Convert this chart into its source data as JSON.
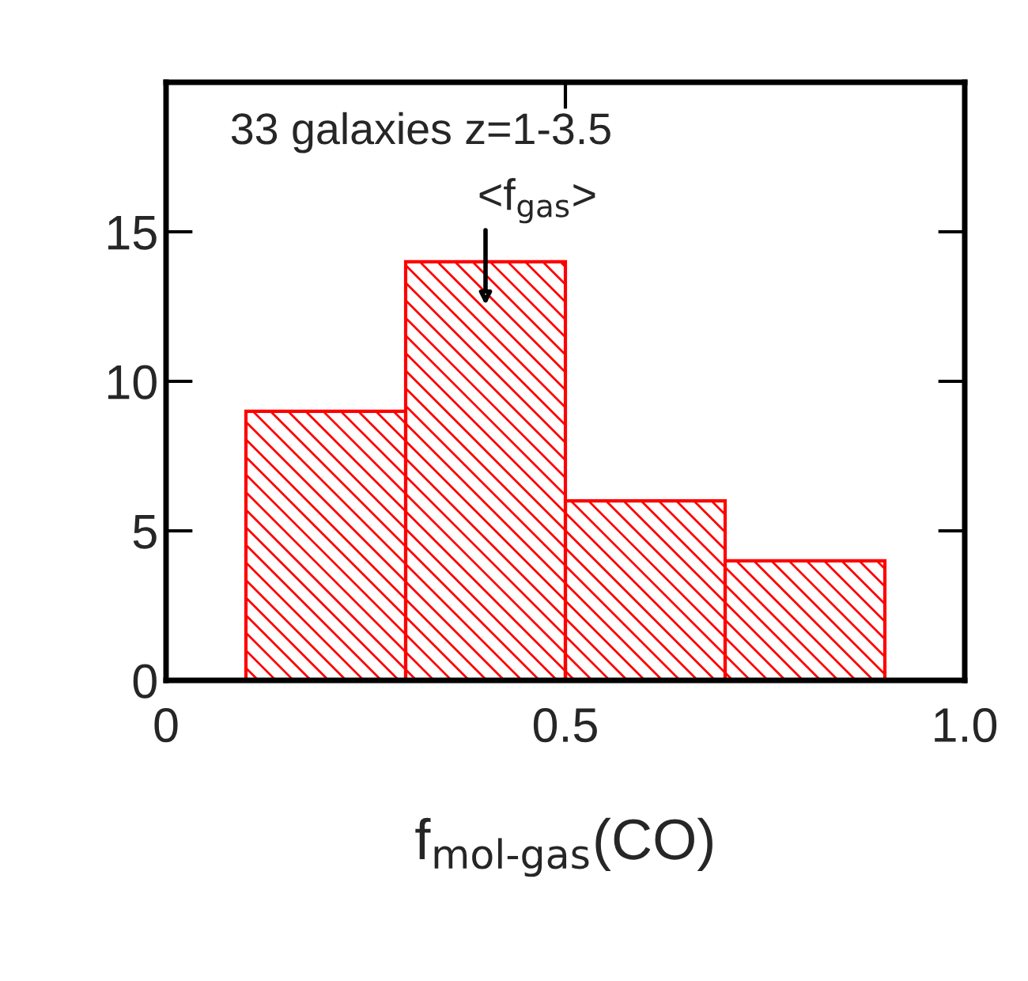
{
  "chart_data": {
    "type": "histogram",
    "xlabel": "f$_{mol-gas}$(CO)",
    "bins": [
      0.1,
      0.3,
      0.5,
      0.7,
      0.9
    ],
    "values": [
      9,
      14,
      6,
      4
    ],
    "color": "#ff0000",
    "xlim": [
      0,
      1.0
    ],
    "xticks": [
      0,
      0.5,
      {
        "value": 1.0,
        "label": "1.0"
      }
    ],
    "ylim": [
      0,
      20
    ],
    "yticks": [
      0,
      5,
      10,
      15
    ],
    "annotations": [
      "33 galaxies z=1-3.5",
      "<f$_{gas}$>"
    ],
    "grid": false
  }
}
